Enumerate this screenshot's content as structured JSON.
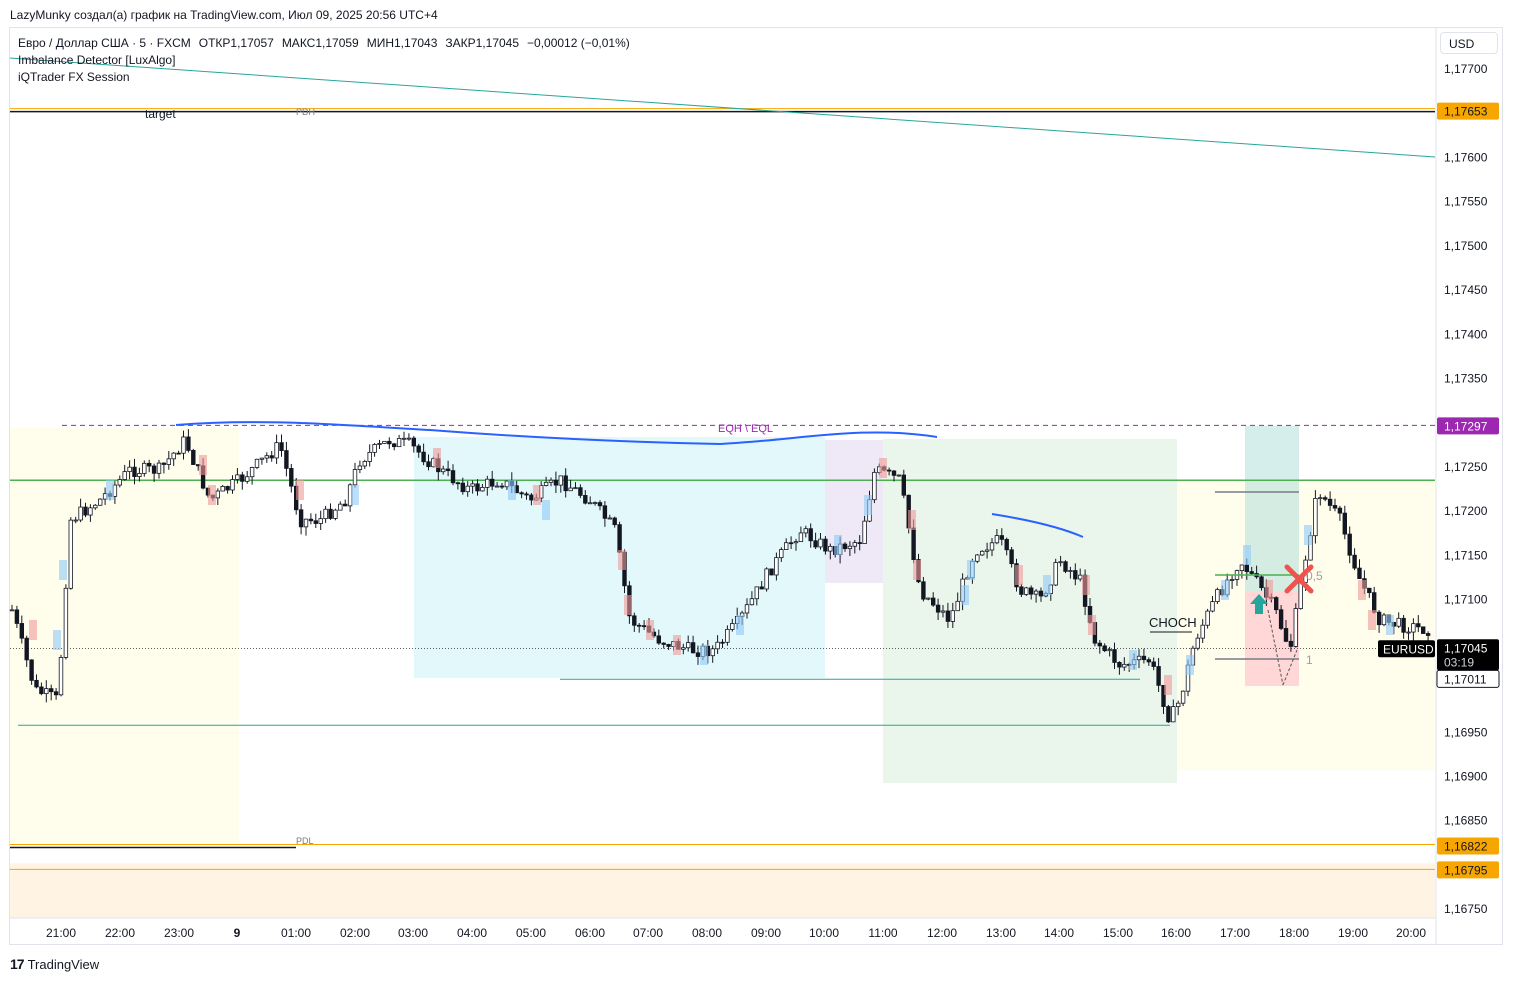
{
  "caption": "LazyMunky создал(а) график на TradingView.com, Июл 09, 2025 20:56 UTC+4",
  "currency_button": "USD",
  "legend": {
    "symbol": "Евро / Доллар США · 5 · FXCM",
    "open": "ОТКР1,17057",
    "high": "МАКС1,17059",
    "low": "МИН1,17043",
    "close": "ЗАКР1,17045",
    "change": "−0,00012 (−0,01%)",
    "indicator1": "Imbalance Detector [LuxAlgo]",
    "indicator2": "iQTrader FX Session"
  },
  "brand": "TradingView",
  "colors": {
    "candle_up": "#131722",
    "candle_down": "#131722",
    "level_orange": "#f7a600",
    "level_purple": "#9c27b0",
    "green_line": "#4caf50",
    "teal_line": "#26a69a",
    "blue_drawing": "#2962ff",
    "last_price_bg": "#000000"
  },
  "chart_data": {
    "type": "candlestick",
    "symbol": "EURUSD",
    "interval": "5",
    "x_tick_labels": [
      "21:00",
      "22:00",
      "23:00",
      "9",
      "01:00",
      "02:00",
      "03:00",
      "04:00",
      "05:00",
      "06:00",
      "07:00",
      "08:00",
      "09:00",
      "10:00",
      "11:00",
      "12:00",
      "13:00",
      "14:00",
      "15:00",
      "16:00",
      "17:00",
      "18:00",
      "19:00",
      "20:00"
    ],
    "y_tick_labels": [
      "1,17700",
      "1,17600",
      "1,17550",
      "1,17500",
      "1,17450",
      "1,17400",
      "1,17350",
      "1,17250",
      "1,17200",
      "1,17150",
      "1,17100",
      "1,16950",
      "1,16900",
      "1,16850",
      "1,16750"
    ],
    "y_tick_values": [
      1.177,
      1.176,
      1.1755,
      1.175,
      1.1745,
      1.174,
      1.1735,
      1.1725,
      1.172,
      1.1715,
      1.171,
      1.1695,
      1.169,
      1.1685,
      1.1675
    ],
    "ylim": [
      1.1673,
      1.1774
    ],
    "price_labels": [
      {
        "text": "1,17653",
        "value": 1.17653,
        "color": "#f7a600",
        "text_color": "#131722"
      },
      {
        "text": "1,17297",
        "value": 1.17297,
        "color": "#9c27b0",
        "text_color": "#ffffff"
      },
      {
        "text": "1,17011",
        "value": 1.17011,
        "color": "#ffffff",
        "text_color": "#131722"
      },
      {
        "text": "1,16822",
        "value": 1.16822,
        "color": "#f7a600",
        "text_color": "#131722"
      },
      {
        "text": "1,16795",
        "value": 1.16795,
        "color": "#f7a600",
        "text_color": "#131722"
      }
    ],
    "last_price": {
      "symbol": "EURUSD",
      "price": "1,17045",
      "value": 1.17045,
      "countdown": "03:19"
    },
    "annotations": {
      "target": "target",
      "pdh": "PDH",
      "pdl": "PDL",
      "eqh_eql": "EQH \\ EQL",
      "choch": "CHOCH",
      "fib_half": "0,5",
      "fib_one": "1"
    },
    "levels": {
      "pdh": 1.17653,
      "eqh": 1.17297,
      "green": 1.17235,
      "pdl": 1.16822,
      "lower": 1.16795,
      "low_swing": 1.16958,
      "mid_low": 1.1701
    }
  }
}
